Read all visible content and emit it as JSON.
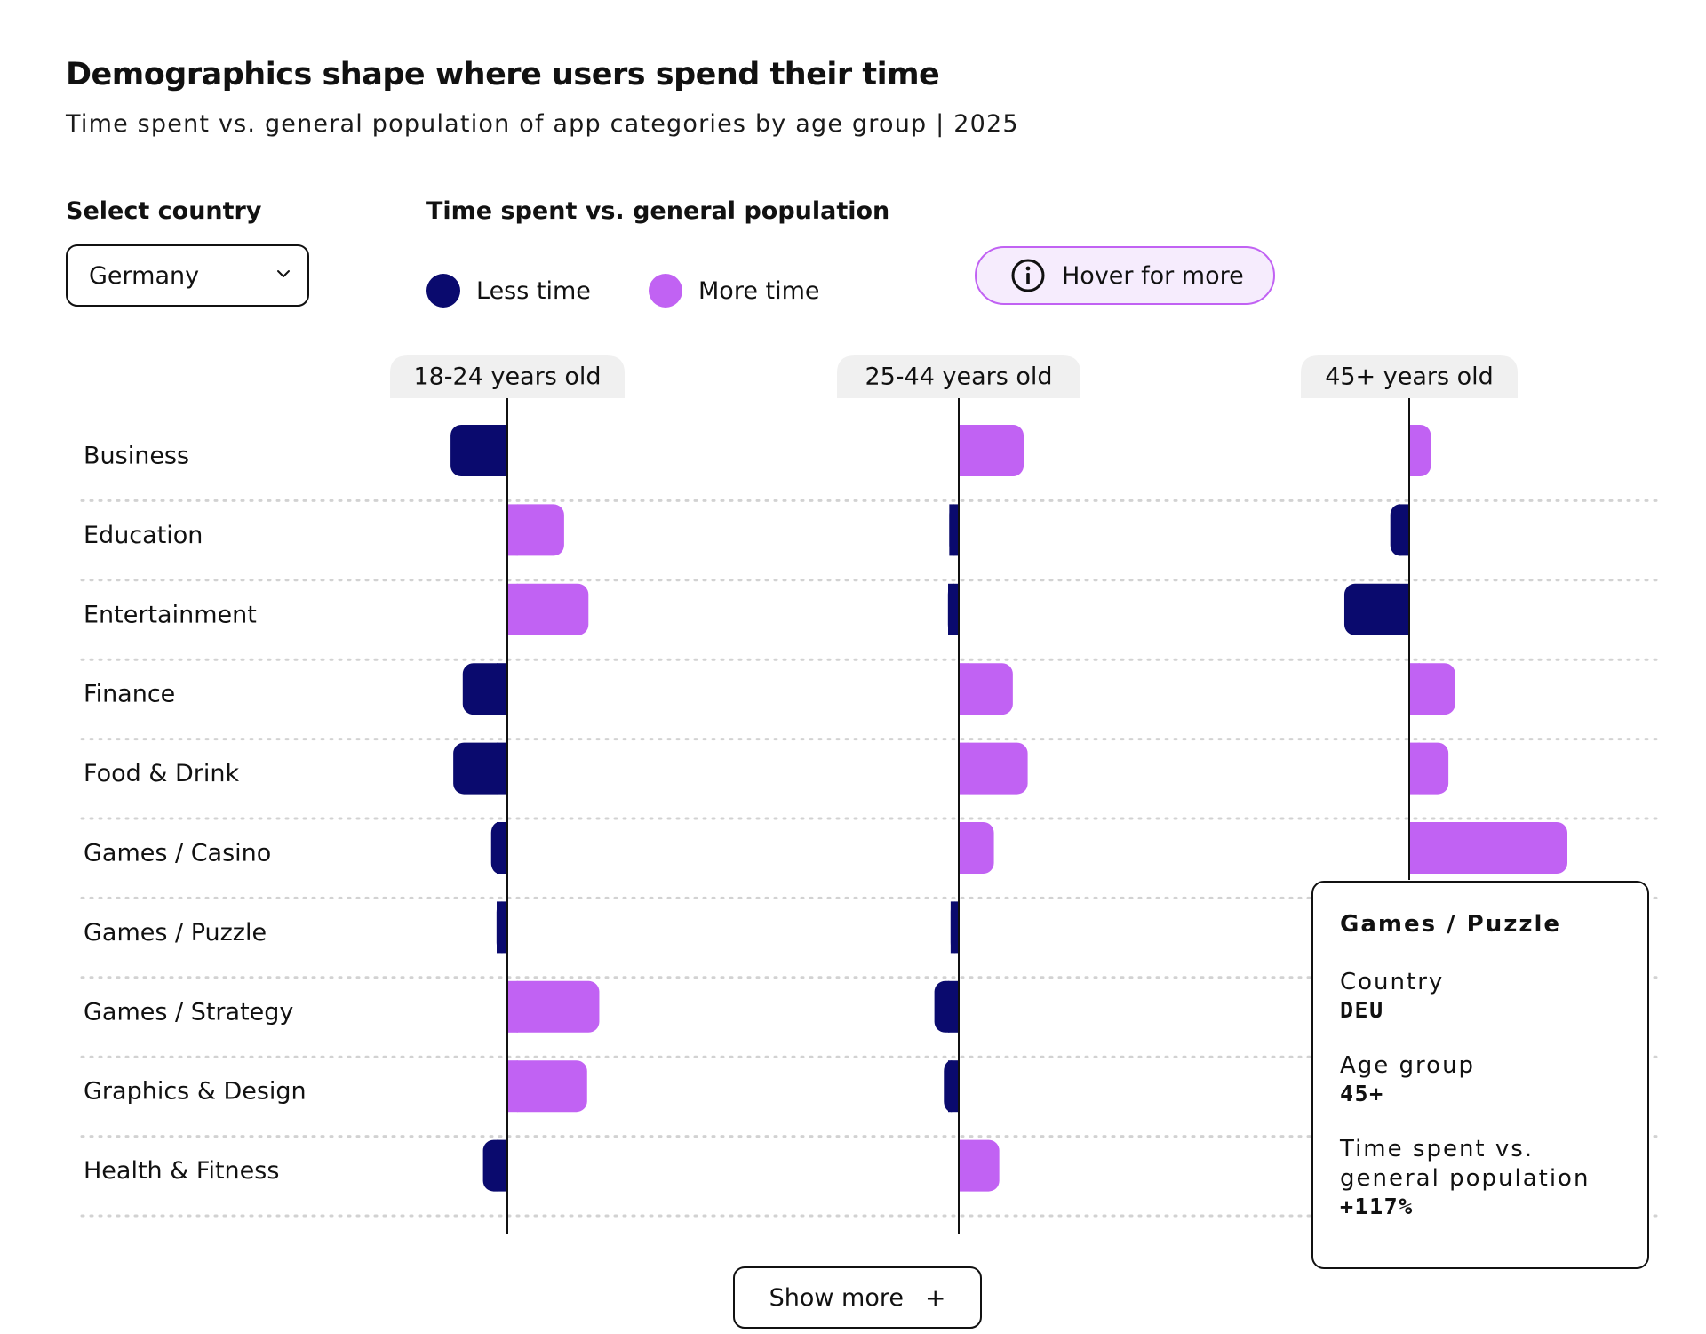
{
  "title": "Demographics shape where users spend their time",
  "subtitle": "Time spent vs. general population of app categories by age group | 2025",
  "controls": {
    "country_label": "Select country",
    "country_value": "Germany",
    "metric_label": "Time spent vs. general population",
    "hover_label": "Hover for more"
  },
  "legend": [
    {
      "name": "Less time",
      "color": "#0a0a6e"
    },
    {
      "name": "More time",
      "color": "#c162f3"
    }
  ],
  "chart_data": {
    "type": "bar",
    "orientation": "horizontal-diverging",
    "title": "Demographics shape where users spend their time",
    "subtitle": "Time spent vs. general population of app categories by age group | 2025",
    "unit": "%",
    "categories": [
      "Business",
      "Education",
      "Entertainment",
      "Finance",
      "Food & Drink",
      "Games / Casino",
      "Games / Puzzle",
      "Games / Strategy",
      "Graphics & Design",
      "Health & Fitness"
    ],
    "series": [
      {
        "name": "18-24 years old",
        "values": [
          -42,
          42,
          60,
          -33,
          -40,
          -12,
          -8,
          68,
          59,
          -18
        ]
      },
      {
        "name": "25-44 years old",
        "values": [
          48,
          -7,
          -8,
          40,
          51,
          26,
          -6,
          -18,
          -11,
          30
        ]
      },
      {
        "name": "45+ years old",
        "values": [
          16,
          -14,
          -48,
          34,
          29,
          117,
          null,
          null,
          null,
          null
        ]
      }
    ],
    "value_scale_max": 117,
    "grid": "dotted horizontal separators",
    "legend": [
      "Less time",
      "More time"
    ]
  },
  "tooltip": {
    "title": "Games / Puzzle",
    "country_label": "Country",
    "country_value": "DEU",
    "age_label": "Age group",
    "age_value": "45+",
    "metric_label": "Time spent vs. general population",
    "metric_value": "+117%"
  },
  "show_more_label": "Show more",
  "icons": {
    "select": "chevron-down-icon",
    "hover": "info-icon",
    "show_more": "plus-icon"
  }
}
